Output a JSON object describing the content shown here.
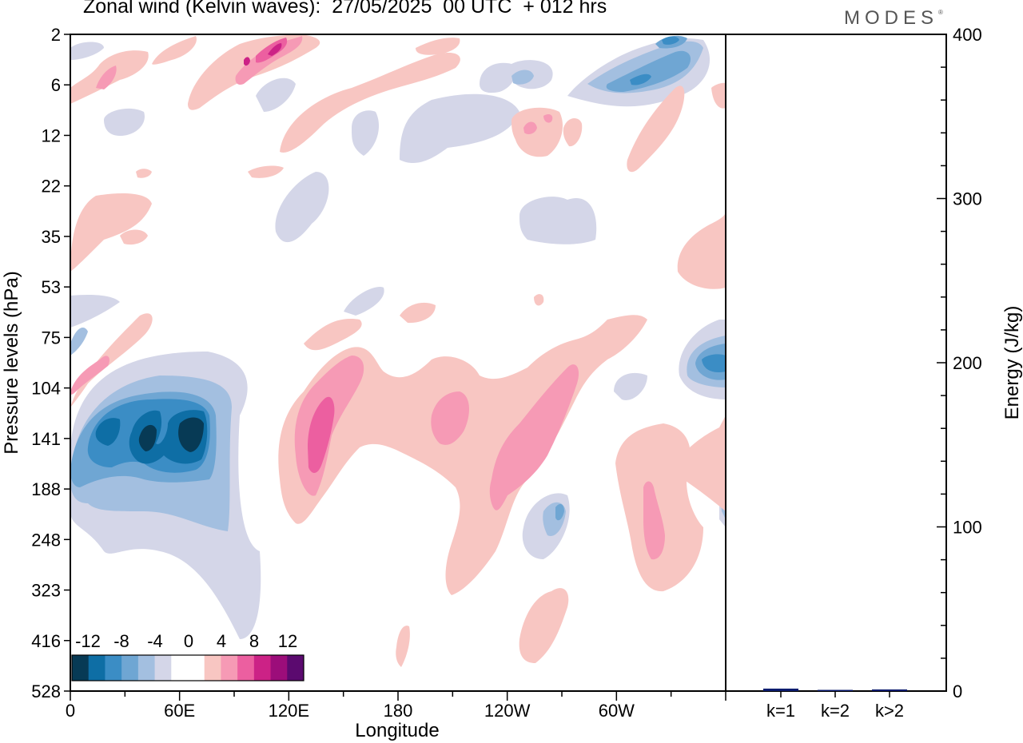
{
  "header": {
    "title": "Zonal wind (Kelvin waves):  27/05/2025  00 UTC  + 012 hrs",
    "logo": "MODES"
  },
  "colors": {
    "negative": [
      "#073a55",
      "#0e6ea5",
      "#3b8dc5",
      "#6fa6d3",
      "#a3bfe0",
      "#d4d6e8"
    ],
    "positive": [
      "#f8c6c2",
      "#f69ab5",
      "#ec5fa0",
      "#cc2286",
      "#9c0d7a",
      "#5b0a6f"
    ],
    "bar": "#0b1b6e"
  },
  "chart_data": [
    {
      "type": "heatmap",
      "name": "hovmoller",
      "xlabel": "Longitude",
      "ylabel": "Pressure levels (hPa)",
      "x_ticks": [
        "0",
        "60E",
        "120E",
        "180",
        "120W",
        "60W"
      ],
      "y_ticks": [
        "2",
        "6",
        "12",
        "22",
        "35",
        "53",
        "75",
        "104",
        "141",
        "188",
        "248",
        "323",
        "416",
        "528"
      ],
      "colorbar": {
        "labels": [
          "-12",
          "-8",
          "-4",
          "0",
          "4",
          "8",
          "12"
        ],
        "levels": [
          -14,
          -12,
          -10,
          -8,
          -6,
          -4,
          -2,
          2,
          4,
          6,
          8,
          10,
          12,
          14
        ]
      },
      "features": [
        {
          "lon": 40,
          "p": 141,
          "value": -12,
          "shape": "negative"
        },
        {
          "lon": 12,
          "p": 141,
          "value": -8,
          "shape": "negative"
        },
        {
          "lon": 135,
          "p": 141,
          "value": 8,
          "shape": "positive"
        },
        {
          "lon": 200,
          "p": 141,
          "value": 6,
          "shape": "positive"
        },
        {
          "lon": 250,
          "p": 141,
          "value": 6,
          "shape": "positive"
        },
        {
          "lon": 308,
          "p": 248,
          "value": 6,
          "shape": "positive"
        },
        {
          "lon": 345,
          "p": 104,
          "value": -6,
          "shape": "negative"
        },
        {
          "lon": 110,
          "p": 2,
          "value": 10,
          "shape": "positive"
        },
        {
          "lon": 320,
          "p": 2,
          "value": -8,
          "shape": "negative"
        },
        {
          "lon": 285,
          "p": 6,
          "value": -6,
          "shape": "negative"
        }
      ]
    },
    {
      "type": "bar",
      "name": "energy",
      "categories": [
        "k=1",
        "k=2",
        "k>2"
      ],
      "values": [
        1.5,
        0.5,
        1.0
      ],
      "ylabel": "Energy (J/kg)",
      "ylim": [
        0,
        400
      ],
      "y_ticks": [
        "0",
        "100",
        "200",
        "300",
        "400"
      ]
    }
  ]
}
